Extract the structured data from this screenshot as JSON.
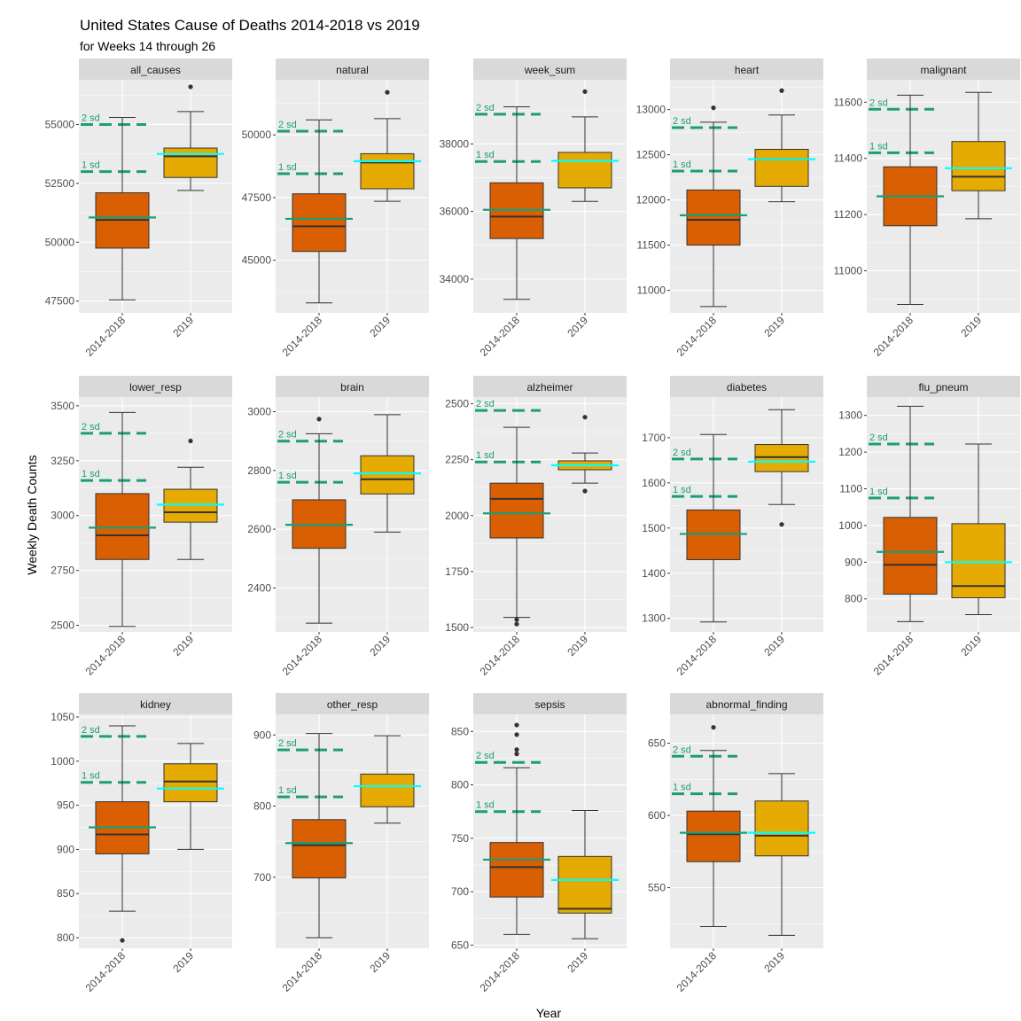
{
  "chart_data": {
    "type": "boxplot",
    "title": "United States Cause of Deaths  2014-2018 vs 2019",
    "subtitle": "for Weeks 14 through 26",
    "xlabel": "Year",
    "ylabel": "Weekly Death Counts",
    "categories": [
      "2014-2018",
      "2019"
    ],
    "sd_labels": [
      "1 sd",
      "2 sd"
    ],
    "colors": {
      "box_2014_2018": "#D95F02",
      "box_2019": "#E6AB02",
      "mean_2014_2018": "#1B9E77",
      "mean_2019": "#00FFFF",
      "sd_line": "#1B9E77",
      "panel_bg": "#EBEBEB",
      "strip_bg": "#D9D9D9",
      "grid": "#FFFFFF"
    },
    "panels": [
      {
        "name": "all_causes",
        "ylim": [
          47000,
          56900
        ],
        "ticks": [
          47500,
          50000,
          52500,
          55000
        ],
        "sd1": 53000,
        "sd2": 55000,
        "boxes": [
          {
            "min": 47550,
            "q1": 49750,
            "median": 50950,
            "q3": 52100,
            "max": 55300,
            "mean": 51050,
            "outliers": []
          },
          {
            "min": 52200,
            "q1": 52750,
            "median": 53650,
            "q3": 54000,
            "max": 55550,
            "mean": 53750,
            "outliers": [
              56600
            ]
          }
        ]
      },
      {
        "name": "natural",
        "ylim": [
          42900,
          52200
        ],
        "ticks": [
          45000,
          47500,
          50000
        ],
        "sd1": 48450,
        "sd2": 50150,
        "boxes": [
          {
            "min": 43300,
            "q1": 45350,
            "median": 46350,
            "q3": 47650,
            "max": 50600,
            "mean": 46650,
            "outliers": []
          },
          {
            "min": 47350,
            "q1": 47850,
            "median": 48900,
            "q3": 49250,
            "max": 50650,
            "mean": 48950,
            "outliers": [
              51700
            ]
          }
        ]
      },
      {
        "name": "week_sum",
        "ylim": [
          33000,
          39900
        ],
        "ticks": [
          34000,
          36000,
          38000
        ],
        "sd1": 37480,
        "sd2": 38880,
        "boxes": [
          {
            "min": 33400,
            "q1": 35200,
            "median": 35850,
            "q3": 36850,
            "max": 39100,
            "mean": 36050,
            "outliers": []
          },
          {
            "min": 36300,
            "q1": 36700,
            "median": 37500,
            "q3": 37750,
            "max": 38800,
            "mean": 37500,
            "outliers": [
              39550
            ]
          }
        ]
      },
      {
        "name": "heart",
        "ylim": [
          10750,
          13330
        ],
        "ticks": [
          11000,
          11500,
          12000,
          12500,
          13000
        ],
        "sd1": 12320,
        "sd2": 12800,
        "boxes": [
          {
            "min": 10820,
            "q1": 11500,
            "median": 11780,
            "q3": 12110,
            "max": 12860,
            "mean": 11830,
            "outliers": [
              13020
            ]
          },
          {
            "min": 11980,
            "q1": 12150,
            "median": 12450,
            "q3": 12560,
            "max": 12940,
            "mean": 12450,
            "outliers": [
              13210
            ]
          }
        ]
      },
      {
        "name": "malignant",
        "ylim": [
          10850,
          11680
        ],
        "ticks": [
          11000,
          11200,
          11400,
          11600
        ],
        "sd1": 11420,
        "sd2": 11575,
        "boxes": [
          {
            "min": 10880,
            "q1": 11160,
            "median": 11265,
            "q3": 11370,
            "max": 11625,
            "mean": 11265,
            "outliers": []
          },
          {
            "min": 11185,
            "q1": 11285,
            "median": 11335,
            "q3": 11460,
            "max": 11635,
            "mean": 11365,
            "outliers": []
          }
        ]
      },
      {
        "name": "lower_resp",
        "ylim": [
          2470,
          3540
        ],
        "ticks": [
          2500,
          2750,
          3000,
          3250,
          3500
        ],
        "sd1": 3160,
        "sd2": 3375,
        "boxes": [
          {
            "min": 2495,
            "q1": 2800,
            "median": 2910,
            "q3": 3100,
            "max": 3470,
            "mean": 2945,
            "outliers": []
          },
          {
            "min": 2800,
            "q1": 2970,
            "median": 3015,
            "q3": 3120,
            "max": 3220,
            "mean": 3050,
            "outliers": [
              3340
            ]
          }
        ]
      },
      {
        "name": "brain",
        "ylim": [
          2250,
          3050
        ],
        "ticks": [
          2400,
          2600,
          2800,
          3000
        ],
        "sd1": 2760,
        "sd2": 2900,
        "boxes": [
          {
            "min": 2280,
            "q1": 2535,
            "median": 2615,
            "q3": 2700,
            "max": 2925,
            "mean": 2615,
            "outliers": [
              2975
            ]
          },
          {
            "min": 2590,
            "q1": 2720,
            "median": 2770,
            "q3": 2850,
            "max": 2990,
            "mean": 2790,
            "outliers": []
          }
        ]
      },
      {
        "name": "alzheimer",
        "ylim": [
          1480,
          2530
        ],
        "ticks": [
          1500,
          1750,
          2000,
          2250,
          2500
        ],
        "sd1": 2240,
        "sd2": 2470,
        "boxes": [
          {
            "min": 1545,
            "q1": 1900,
            "median": 2075,
            "q3": 2145,
            "max": 2395,
            "mean": 2010,
            "outliers": [
              1535,
              1515
            ]
          },
          {
            "min": 2145,
            "q1": 2205,
            "median": 2225,
            "q3": 2245,
            "max": 2280,
            "mean": 2225,
            "outliers": [
              2440,
              2110
            ]
          }
        ]
      },
      {
        "name": "diabetes",
        "ylim": [
          1270,
          1790
        ],
        "ticks": [
          1300,
          1400,
          1500,
          1600,
          1700
        ],
        "sd1": 1570,
        "sd2": 1653,
        "boxes": [
          {
            "min": 1292,
            "q1": 1430,
            "median": 1487,
            "q3": 1540,
            "max": 1707,
            "mean": 1487,
            "outliers": []
          },
          {
            "min": 1552,
            "q1": 1625,
            "median": 1657,
            "q3": 1685,
            "max": 1762,
            "mean": 1647,
            "outliers": [
              1508
            ]
          }
        ]
      },
      {
        "name": "flu_pneum",
        "ylim": [
          710,
          1350
        ],
        "ticks": [
          800,
          900,
          1000,
          1100,
          1200,
          1300
        ],
        "sd1": 1075,
        "sd2": 1222,
        "boxes": [
          {
            "min": 738,
            "q1": 813,
            "median": 893,
            "q3": 1022,
            "max": 1325,
            "mean": 928,
            "outliers": []
          },
          {
            "min": 757,
            "q1": 803,
            "median": 835,
            "q3": 1005,
            "max": 1222,
            "mean": 900,
            "outliers": []
          }
        ]
      },
      {
        "name": "kidney",
        "ylim": [
          788,
          1053
        ],
        "ticks": [
          800,
          850,
          900,
          950,
          1000,
          1050
        ],
        "sd1": 976,
        "sd2": 1028,
        "boxes": [
          {
            "min": 830,
            "q1": 895,
            "median": 917,
            "q3": 954,
            "max": 1040,
            "mean": 925,
            "outliers": [
              797
            ]
          },
          {
            "min": 900,
            "q1": 954,
            "median": 977,
            "q3": 997,
            "max": 1020,
            "mean": 969,
            "outliers": []
          }
        ]
      },
      {
        "name": "other_resp",
        "ylim": [
          600,
          929
        ],
        "ticks": [
          700,
          800,
          900
        ],
        "sd1": 813,
        "sd2": 879,
        "boxes": [
          {
            "min": 615,
            "q1": 699,
            "median": 745,
            "q3": 781,
            "max": 902,
            "mean": 748,
            "outliers": []
          },
          {
            "min": 776,
            "q1": 799,
            "median": 828,
            "q3": 845,
            "max": 899,
            "mean": 828,
            "outliers": []
          }
        ]
      },
      {
        "name": "sepsis",
        "ylim": [
          647,
          866
        ],
        "ticks": [
          650,
          700,
          750,
          800,
          850
        ],
        "sd1": 775,
        "sd2": 821,
        "boxes": [
          {
            "min": 660,
            "q1": 695,
            "median": 723,
            "q3": 746,
            "max": 816,
            "mean": 730,
            "outliers": [
              856,
              847,
              833,
              829
            ]
          },
          {
            "min": 656,
            "q1": 680,
            "median": 684,
            "q3": 733,
            "max": 776,
            "mean": 711,
            "outliers": []
          }
        ]
      },
      {
        "name": "abnormal_finding",
        "ylim": [
          508,
          670
        ],
        "ticks": [
          550,
          600,
          650
        ],
        "sd1": 615,
        "sd2": 641,
        "boxes": [
          {
            "min": 523,
            "q1": 568,
            "median": 587,
            "q3": 603,
            "max": 645,
            "mean": 588,
            "outliers": [
              661
            ]
          },
          {
            "min": 517,
            "q1": 572,
            "median": 586,
            "q3": 610,
            "max": 629,
            "mean": 588,
            "outliers": []
          }
        ]
      }
    ]
  }
}
